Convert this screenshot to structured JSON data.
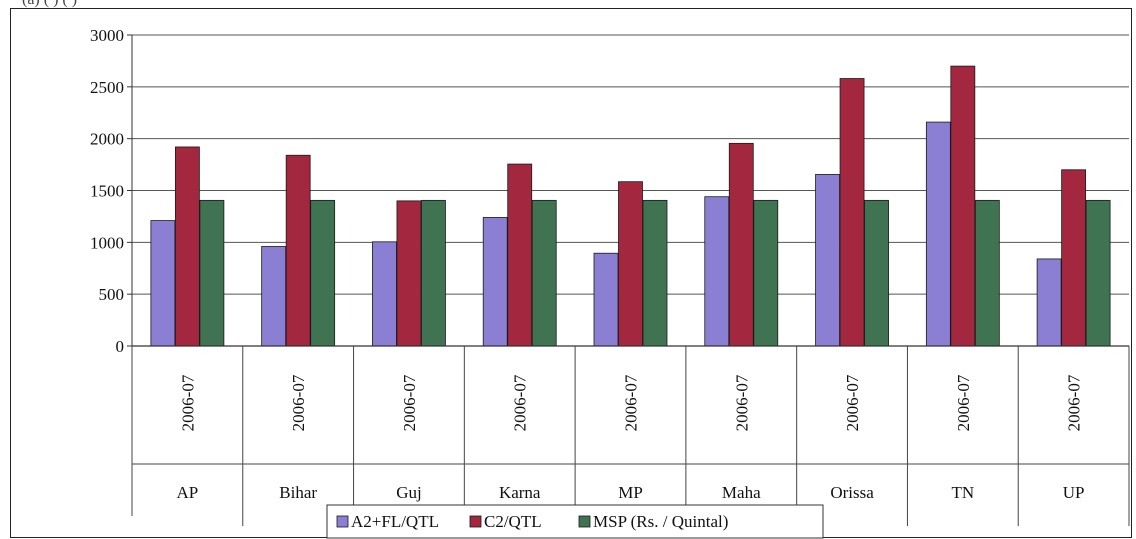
{
  "cropped_caption": "(a)                          (    )                (         )",
  "chart_data": {
    "type": "bar",
    "categories": [
      {
        "period": "2006-07",
        "state": "AP"
      },
      {
        "period": "2006-07",
        "state": "Bihar"
      },
      {
        "period": "2006-07",
        "state": "Guj"
      },
      {
        "period": "2006-07",
        "state": "Karna"
      },
      {
        "period": "2006-07",
        "state": "MP"
      },
      {
        "period": "2006-07",
        "state": "Maha"
      },
      {
        "period": "2006-07",
        "state": "Orissa"
      },
      {
        "period": "2006-07",
        "state": "TN"
      },
      {
        "period": "2006-07",
        "state": "UP"
      }
    ],
    "series": [
      {
        "name": "A2+FL/QTL",
        "color": "#8b7fd4",
        "values": [
          1210,
          960,
          1005,
          1240,
          895,
          1440,
          1655,
          2160,
          840
        ]
      },
      {
        "name": "C2/QTL",
        "color": "#a3273f",
        "values": [
          1920,
          1840,
          1400,
          1755,
          1585,
          1955,
          2580,
          2700,
          1700
        ]
      },
      {
        "name": "MSP (Rs. / Quintal)",
        "color": "#3f7352",
        "values": [
          1405,
          1405,
          1405,
          1405,
          1405,
          1405,
          1405,
          1405,
          1405
        ]
      }
    ],
    "yticks": [
      0,
      500,
      1000,
      1500,
      2000,
      2500,
      3000
    ],
    "ylim": [
      0,
      3000
    ],
    "grid": true,
    "legend_position": "bottom"
  }
}
